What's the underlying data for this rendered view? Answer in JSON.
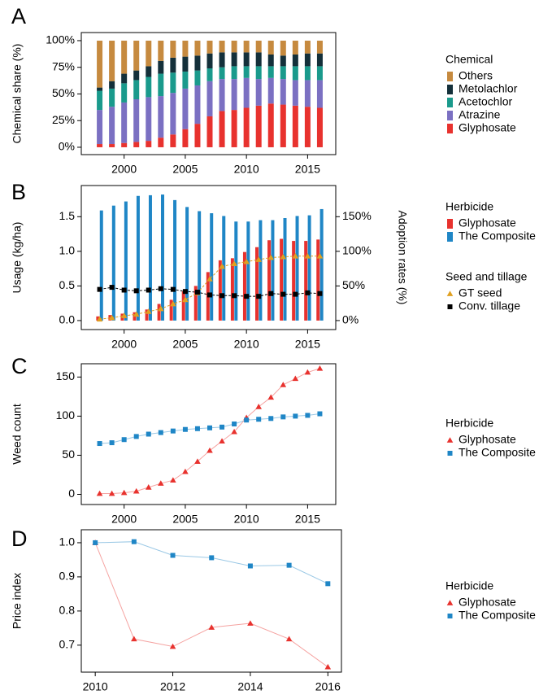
{
  "chart_data": [
    {
      "type": "bar",
      "stacked": true,
      "panel_label": "A",
      "y_label": "Chemical share (%)",
      "legend_title": "Chemical",
      "legend_reversed": true,
      "x": [
        1998,
        1999,
        2000,
        2001,
        2002,
        2003,
        2004,
        2005,
        2006,
        2007,
        2008,
        2009,
        2010,
        2011,
        2012,
        2013,
        2014,
        2015,
        2016
      ],
      "xlim": [
        1996.5,
        2017.3
      ],
      "xticks": [
        2000,
        2005,
        2010,
        2015
      ],
      "ylim": [
        -6.9,
        107.6
      ],
      "yticks": [
        {
          "value": 0,
          "label": "0%"
        },
        {
          "value": 25,
          "label": "25%"
        },
        {
          "value": 50,
          "label": "50%"
        },
        {
          "value": 75,
          "label": "75%"
        },
        {
          "value": 100,
          "label": "100%"
        }
      ],
      "series": [
        {
          "name": "Glyphosate",
          "color": "#e8322e",
          "values": [
            3,
            3,
            4,
            5,
            6,
            9,
            12,
            17,
            22,
            29,
            34,
            35,
            37,
            39,
            41,
            40,
            39,
            38,
            37
          ]
        },
        {
          "name": "Atrazine",
          "color": "#7b70c2",
          "values": [
            32,
            35,
            38,
            40,
            41,
            39,
            39,
            38,
            36,
            33,
            30,
            29,
            28,
            25,
            24,
            24,
            24,
            25,
            26
          ]
        },
        {
          "name": "Acetochlor",
          "color": "#1a9a8c",
          "values": [
            18,
            17,
            18,
            18,
            19,
            21,
            19,
            16,
            14,
            12,
            11,
            12,
            11,
            12,
            11,
            12,
            13,
            13,
            13
          ]
        },
        {
          "name": "Metolachlor",
          "color": "#14303a",
          "values": [
            3,
            7,
            9,
            9,
            10,
            12,
            14,
            14,
            14,
            14,
            14,
            13,
            13,
            13,
            11,
            10,
            11,
            12,
            12
          ]
        },
        {
          "name": "Others",
          "color": "#c68a3f",
          "values": [
            44,
            38,
            31,
            28,
            24,
            19,
            16,
            15,
            14,
            12,
            11,
            11,
            11,
            11,
            13,
            14,
            13,
            12,
            12
          ]
        }
      ]
    },
    {
      "type": "bar",
      "panel_label": "B",
      "y_label": "Usage (kg/ha)",
      "y2_label": "Adoption rates (%)",
      "legend_title": "Herbicide",
      "legend_title2": "Seed and tillage",
      "x": [
        1998,
        1999,
        2000,
        2001,
        2002,
        2003,
        2004,
        2005,
        2006,
        2007,
        2008,
        2009,
        2010,
        2011,
        2012,
        2013,
        2014,
        2015,
        2016
      ],
      "xlim": [
        1996.5,
        2017.3
      ],
      "xticks": [
        2000,
        2005,
        2010,
        2015
      ],
      "ylim": [
        -0.13,
        1.95
      ],
      "yticks": [
        {
          "value": 0,
          "label": "0.0"
        },
        0.5,
        {
          "value": 1,
          "label": "1.0"
        },
        1.5
      ],
      "y2lim": [
        -13,
        195
      ],
      "y2ticks": [
        {
          "value": 0,
          "label": "0%"
        },
        {
          "value": 50,
          "label": "50%"
        },
        {
          "value": 100,
          "label": "100%"
        },
        {
          "value": 150,
          "label": "150%"
        }
      ],
      "series": [
        {
          "name": "Glyphosate",
          "color": "#e8322e",
          "values": [
            0.06,
            0.08,
            0.1,
            0.12,
            0.16,
            0.24,
            0.3,
            0.42,
            0.5,
            0.7,
            0.87,
            0.9,
            0.99,
            1.06,
            1.16,
            1.18,
            1.15,
            1.15,
            1.17
          ]
        },
        {
          "name": "The Composite",
          "color": "#1f86c6",
          "values": [
            1.59,
            1.66,
            1.72,
            1.8,
            1.81,
            1.82,
            1.74,
            1.64,
            1.58,
            1.55,
            1.51,
            1.43,
            1.43,
            1.45,
            1.45,
            1.48,
            1.51,
            1.52,
            1.61
          ]
        },
        {
          "name": "GT seed",
          "color": "#e0a020",
          "type": "line",
          "marker": "triangle",
          "line_style": "dashed",
          "axis": "y2",
          "values": [
            2,
            4,
            7,
            9,
            13,
            17,
            24,
            30,
            40,
            60,
            78,
            82,
            85,
            88,
            91,
            92,
            93,
            93,
            93
          ]
        },
        {
          "name": "Conv. tillage",
          "color": "#000000",
          "type": "line",
          "marker": "square",
          "line_style": "dashed",
          "axis": "y2",
          "values": [
            45,
            48,
            44,
            43,
            44,
            46,
            45,
            42,
            41,
            37,
            36,
            36,
            35,
            35,
            39,
            38,
            38,
            40,
            39
          ]
        }
      ]
    },
    {
      "type": "line",
      "panel_label": "C",
      "y_label": "Weed count",
      "legend_title": "Herbicide",
      "x": [
        1998,
        1999,
        2000,
        2001,
        2002,
        2003,
        2004,
        2005,
        2006,
        2007,
        2008,
        2009,
        2010,
        2011,
        2012,
        2013,
        2014,
        2015,
        2016
      ],
      "xlim": [
        1996.5,
        2017.3
      ],
      "xticks": [
        2000,
        2005,
        2010,
        2015
      ],
      "ylim": [
        -13,
        167
      ],
      "yticks": [
        0,
        50,
        100,
        150
      ],
      "series": [
        {
          "name": "Glyphosate",
          "color": "#e8322e",
          "marker": "triangle",
          "values": [
            1,
            1,
            2,
            4,
            9,
            14,
            18,
            29,
            42,
            56,
            68,
            80,
            98,
            112,
            124,
            140,
            148,
            156,
            161
          ]
        },
        {
          "name": "The Composite",
          "color": "#1f86c6",
          "marker": "square",
          "values": [
            65,
            66,
            70,
            74,
            77,
            79,
            81,
            83,
            84,
            85,
            86,
            90,
            95,
            96,
            97,
            99,
            100,
            101,
            103
          ]
        }
      ]
    },
    {
      "type": "line",
      "panel_label": "D",
      "y_label": "Price index",
      "legend_title": "Herbicide",
      "x": [
        2010,
        2011,
        2012,
        2013,
        2014,
        2015,
        2016
      ],
      "xlim": [
        2009.64,
        2016.35
      ],
      "xticks": [
        2010,
        2012,
        2014,
        2016
      ],
      "ylim": [
        0.621,
        1.038
      ],
      "yticks": [
        0.7,
        0.8,
        0.9,
        {
          "value": 1,
          "label": "1.0"
        }
      ],
      "series": [
        {
          "name": "Glyphosate",
          "color": "#e8322e",
          "marker": "triangle",
          "values": [
            1.0,
            0.718,
            0.696,
            0.752,
            0.764,
            0.718,
            0.636
          ]
        },
        {
          "name": "The Composite",
          "color": "#1f86c6",
          "marker": "square",
          "values": [
            1.0,
            1.003,
            0.963,
            0.956,
            0.932,
            0.934,
            0.88
          ]
        }
      ]
    }
  ]
}
